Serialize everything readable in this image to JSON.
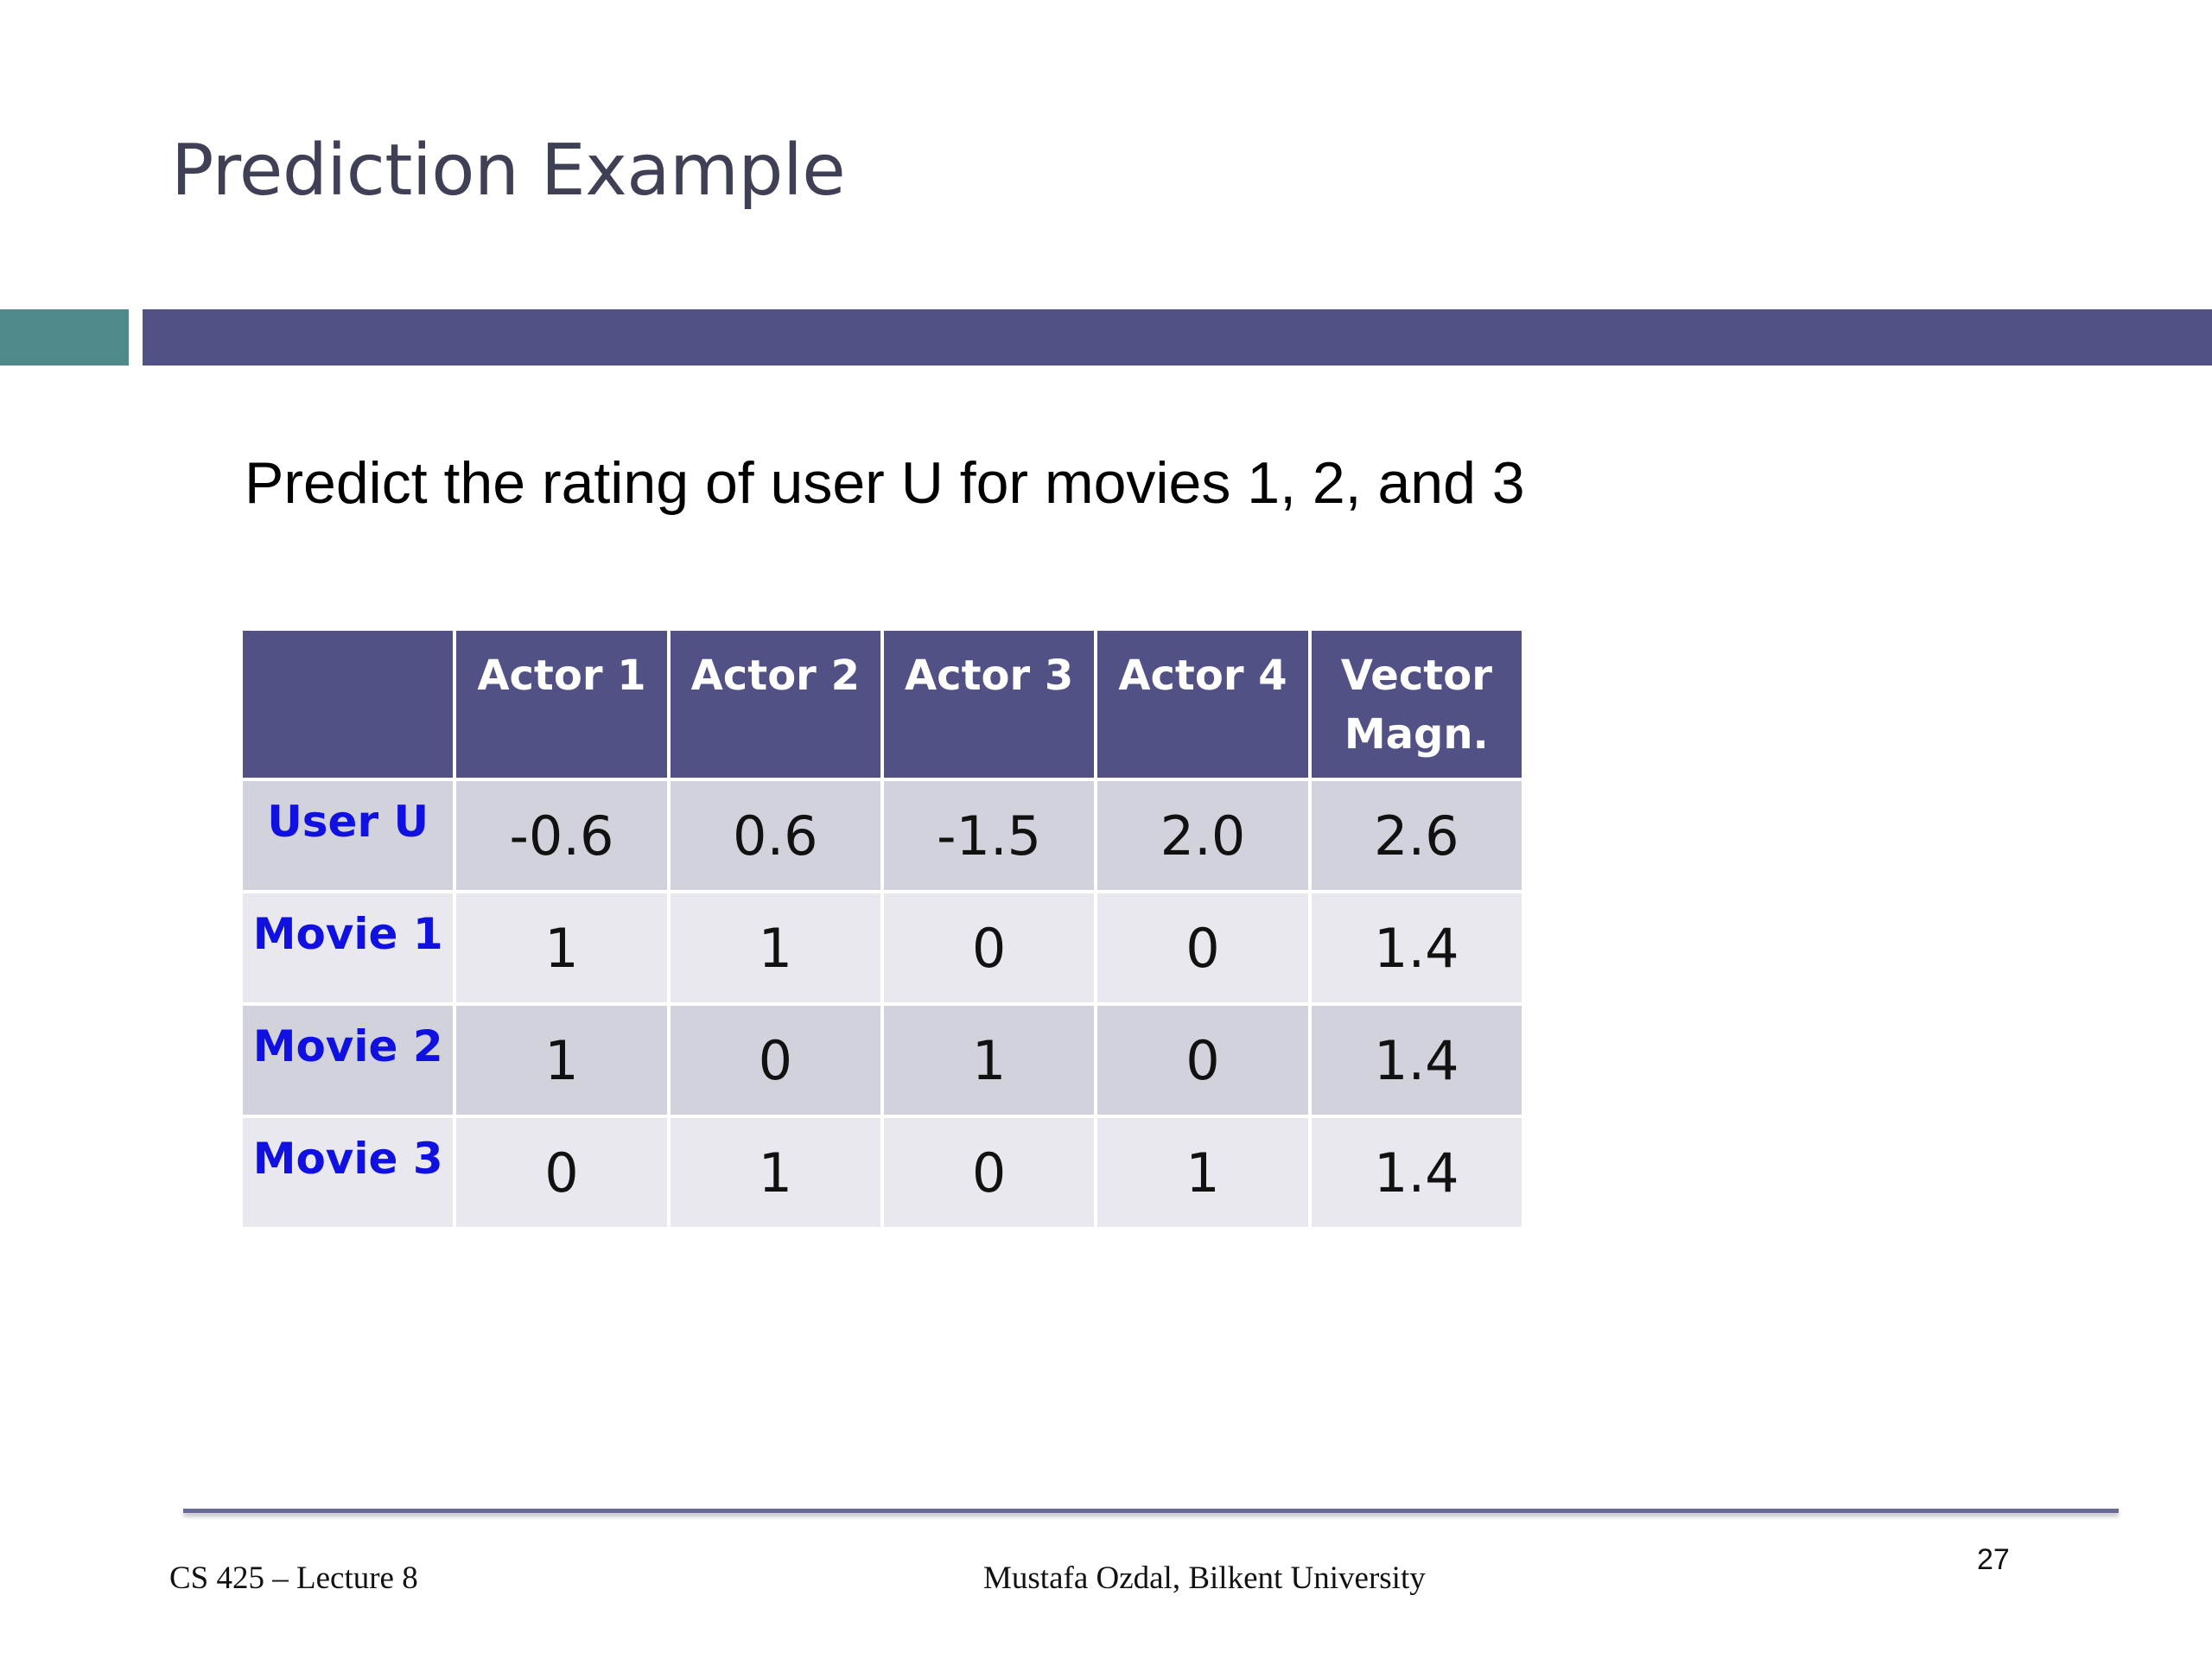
{
  "slide": {
    "title": "Prediction Example",
    "subtitle": "Predict the rating of user U for movies 1, 2, and 3"
  },
  "table": {
    "headers": [
      "",
      "Actor 1",
      "Actor 2",
      "Actor 3",
      "Actor 4",
      "Vector Magn."
    ],
    "rows": [
      {
        "label": "User U",
        "cells": [
          "-0.6",
          "0.6",
          "-1.5",
          "2.0",
          "2.6"
        ]
      },
      {
        "label": "Movie 1",
        "cells": [
          "1",
          "1",
          "0",
          "0",
          "1.4"
        ]
      },
      {
        "label": "Movie 2",
        "cells": [
          "1",
          "0",
          "1",
          "0",
          "1.4"
        ]
      },
      {
        "label": "Movie 3",
        "cells": [
          "0",
          "1",
          "0",
          "1",
          "1.4"
        ]
      }
    ]
  },
  "footer": {
    "course": "CS 425 – Lecture 8",
    "author": "Mustafa Ozdal, Bilkent University",
    "page_number": "27"
  },
  "colors": {
    "title_text": "#3f3f55",
    "accent_bar": "#4f8a89",
    "main_bar": "#525186",
    "header_bg": "#525186",
    "row_label_text": "#1010e0",
    "row_odd_bg": "#d2d2dc",
    "row_even_bg": "#e8e8ee"
  }
}
